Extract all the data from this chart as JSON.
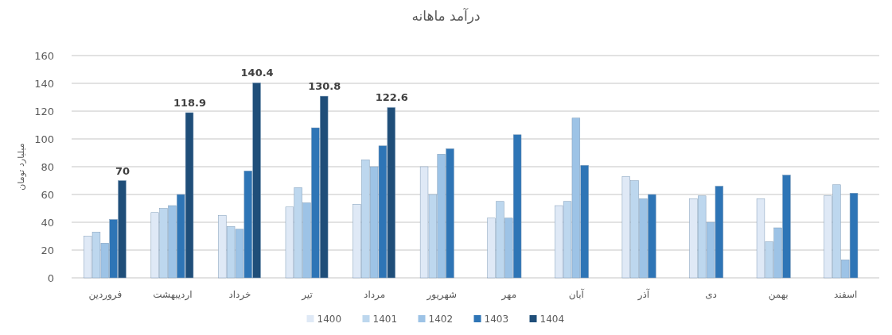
{
  "chart_data": {
    "type": "bar",
    "title": "درآمد ماهانه",
    "ylabel": "میلیارد تومان",
    "categories": [
      "فروردین",
      "اردیبهشت",
      "خرداد",
      "تیر",
      "مرداد",
      "شهریور",
      "مهر",
      "آبان",
      "آذر",
      "دی",
      "بهمن",
      "اسفند"
    ],
    "series": [
      {
        "name": "1400",
        "color": "#dfe9f6",
        "values": [
          30,
          47,
          45,
          51,
          53,
          80,
          43,
          52,
          73,
          57,
          57,
          59
        ]
      },
      {
        "name": "1401",
        "color": "#bdd7ee",
        "values": [
          33,
          50,
          37,
          65,
          85,
          60,
          55,
          55,
          70,
          59,
          26,
          67
        ]
      },
      {
        "name": "1402",
        "color": "#9dc3e6",
        "values": [
          25,
          52,
          35,
          54,
          80,
          89,
          43,
          115,
          57,
          40,
          36,
          13
        ]
      },
      {
        "name": "1403",
        "color": "#2e75b6",
        "values": [
          42,
          60,
          77,
          108,
          95,
          93,
          103,
          81,
          60,
          66,
          74,
          61
        ]
      },
      {
        "name": "1404",
        "color": "#1f4e79",
        "values": [
          70,
          118.9,
          140.4,
          130.8,
          122.6,
          null,
          null,
          null,
          null,
          null,
          null,
          null
        ],
        "value_labels": [
          "70",
          "118.9",
          "140.4",
          "130.8",
          "122.6",
          null,
          null,
          null,
          null,
          null,
          null,
          null
        ]
      }
    ],
    "ylim": [
      0,
      160
    ],
    "yticks": [
      0,
      20,
      40,
      60,
      80,
      100,
      120,
      140,
      160
    ],
    "grid": "y",
    "legend": "bottom"
  }
}
